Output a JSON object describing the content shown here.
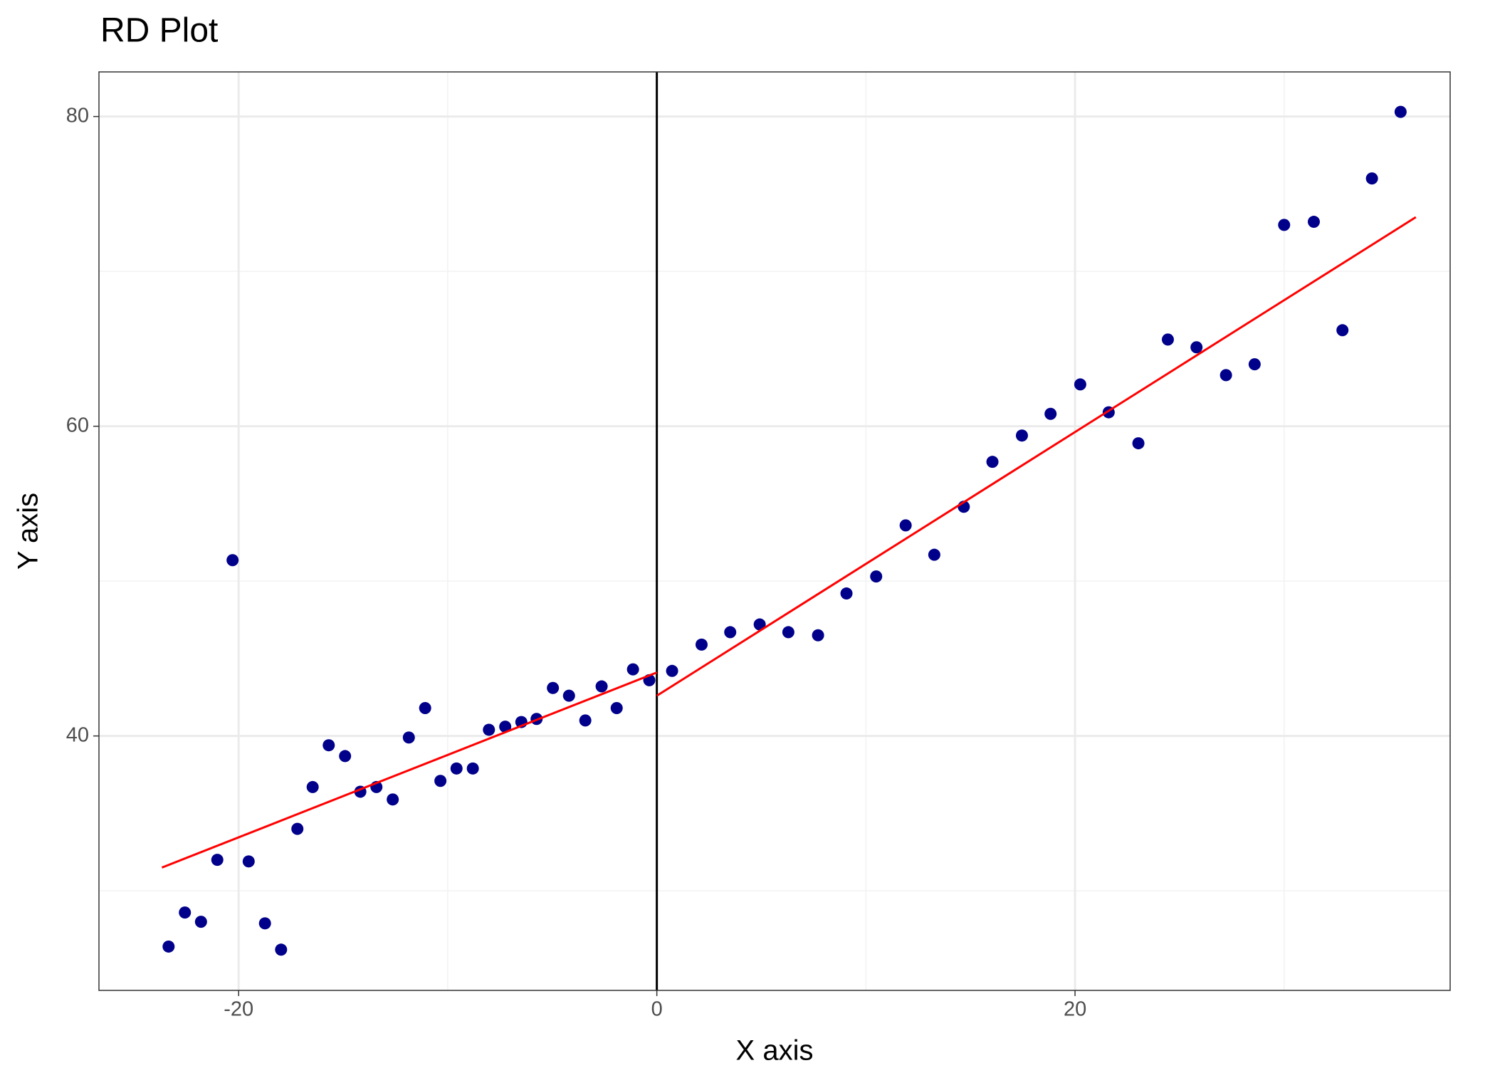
{
  "chart_data": {
    "type": "scatter",
    "title": "RD Plot",
    "x_label": "X axis",
    "y_label": "Y axis",
    "color": "#00008b",
    "x": [
      -23.35,
      -22.57,
      -21.8,
      -21.02,
      -20.29,
      -19.52,
      -18.74,
      -17.97,
      -17.19,
      -16.46,
      -15.69,
      -14.91,
      -14.18,
      -13.41,
      -12.63,
      -11.86,
      -11.08,
      -10.35,
      -9.58,
      -8.8,
      -8.03,
      -7.25,
      -6.48,
      -5.75,
      -4.97,
      -4.2,
      -3.42,
      -2.64,
      -1.92,
      -1.14,
      -0.36,
      0.73,
      2.14,
      3.51,
      4.92,
      6.29,
      7.71,
      9.07,
      10.49,
      11.9,
      13.27,
      14.68,
      16.05,
      17.46,
      18.83,
      20.25,
      21.61,
      23.03,
      24.44,
      25.81,
      27.22,
      28.59,
      30.0,
      31.42,
      32.79,
      34.2,
      35.57
    ],
    "values": [
      26.4,
      28.6,
      28.0,
      32.0,
      51.35,
      31.9,
      27.9,
      26.2,
      34.0,
      36.7,
      39.4,
      38.7,
      36.4,
      36.7,
      35.9,
      39.9,
      41.8,
      37.1,
      37.9,
      37.9,
      40.4,
      40.6,
      40.9,
      41.1,
      43.1,
      42.6,
      41.0,
      43.2,
      41.8,
      44.3,
      43.6,
      44.2,
      45.9,
      46.7,
      47.2,
      46.7,
      46.5,
      49.2,
      50.3,
      53.6,
      51.7,
      54.8,
      57.7,
      59.4,
      60.8,
      62.7,
      60.9,
      58.9,
      65.6,
      65.1,
      63.3,
      64.0,
      73.0,
      73.2,
      66.2,
      76.0,
      80.3
    ],
    "lines": [
      {
        "x": [
          -23.67,
          0
        ],
        "values": [
          31.5,
          44.1
        ],
        "color": "#ff0000"
      },
      {
        "x": [
          0,
          36.3
        ],
        "values": [
          42.6,
          73.5
        ],
        "color": "#ff0000"
      }
    ],
    "vline": 0,
    "xlim": [
      -26.68,
      37.94
    ],
    "xticks": [
      -20,
      0,
      20
    ],
    "xminor": [
      -10,
      10,
      30
    ],
    "ylim": [
      23.57,
      82.88
    ],
    "yticks": [
      40,
      60,
      80
    ],
    "yminor": [
      30,
      50,
      70
    ],
    "grid": true
  }
}
